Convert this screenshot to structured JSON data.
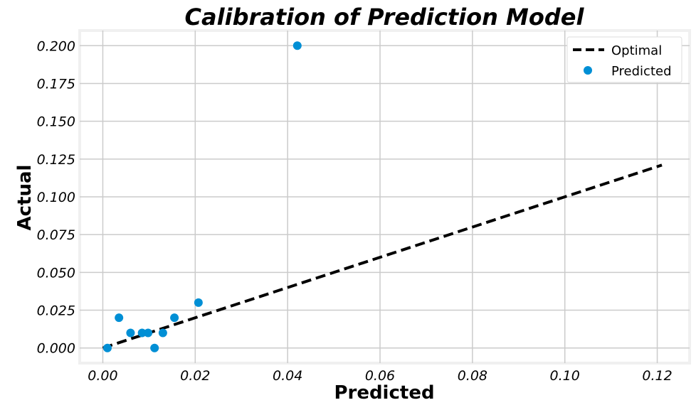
{
  "chart_data": {
    "type": "scatter",
    "title": "Calibration of Prediction Model",
    "xlabel": "Predicted",
    "ylabel": "Actual",
    "xlim": [
      -0.005,
      0.127
    ],
    "ylim": [
      -0.01,
      0.21
    ],
    "xticks": [
      "0.00",
      "0.02",
      "0.04",
      "0.06",
      "0.08",
      "0.10",
      "0.12"
    ],
    "yticks": [
      "0.000",
      "0.025",
      "0.050",
      "0.075",
      "0.100",
      "0.125",
      "0.150",
      "0.175",
      "0.200"
    ],
    "grid": true,
    "legend_position": "top-right",
    "series": [
      {
        "name": "Optimal",
        "kind": "line",
        "style": "dashed",
        "color": "#000000",
        "x": [
          0.0,
          0.121
        ],
        "y": [
          0.0,
          0.121
        ]
      },
      {
        "name": "Predicted",
        "kind": "scatter",
        "color": "#008fd5",
        "x": [
          0.001,
          0.0035,
          0.006,
          0.0085,
          0.0098,
          0.0112,
          0.013,
          0.0155,
          0.0207,
          0.0421
        ],
        "y": [
          0.0,
          0.02,
          0.01,
          0.01,
          0.01,
          0.0,
          0.01,
          0.02,
          0.03,
          0.2
        ]
      }
    ]
  }
}
